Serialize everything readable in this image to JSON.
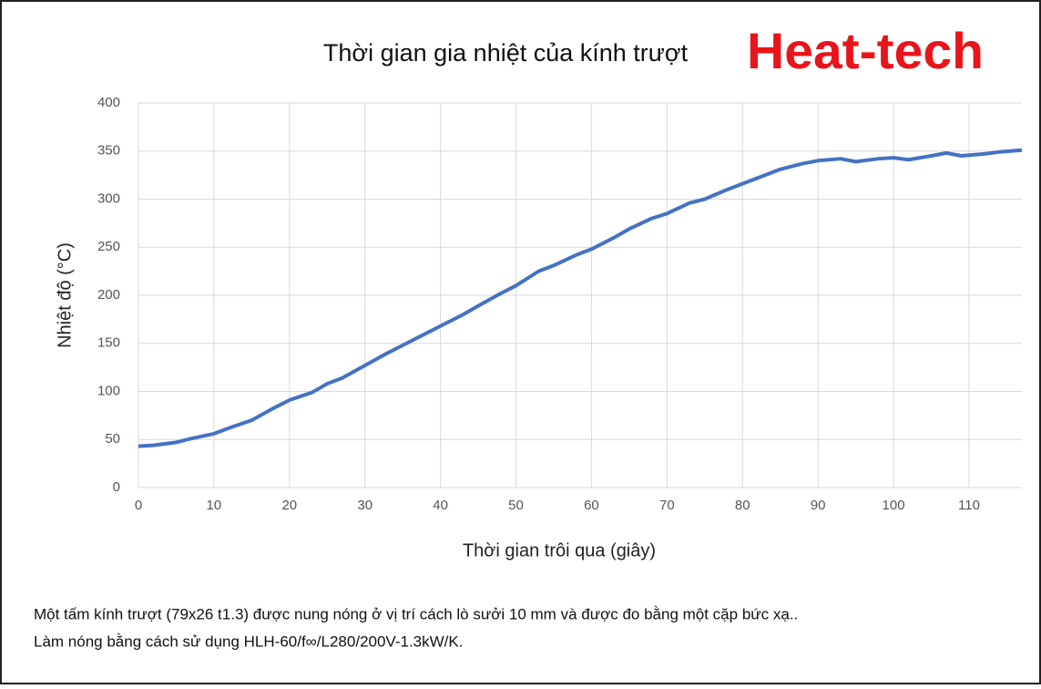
{
  "chart_data": {
    "type": "line",
    "title": "Thời gian gia nhiệt của kính trượt",
    "brand": "Heat-tech",
    "x_label": "Thời gian trôi qua (giây)",
    "y_label": "Nhiệt độ (°C)",
    "xlim": [
      0,
      117
    ],
    "xticks": [
      0,
      10,
      20,
      30,
      40,
      50,
      60,
      70,
      80,
      90,
      100,
      110
    ],
    "ylim": [
      0,
      400
    ],
    "yticks": [
      0,
      50,
      100,
      150,
      200,
      250,
      300,
      350,
      400
    ],
    "grid": true,
    "series": [
      {
        "color": "#4472c4",
        "x": [
          0,
          2,
          5,
          7,
          10,
          12,
          15,
          18,
          20,
          23,
          25,
          27,
          30,
          33,
          35,
          38,
          40,
          43,
          45,
          48,
          50,
          53,
          55,
          58,
          60,
          63,
          65,
          68,
          70,
          73,
          75,
          78,
          80,
          83,
          85,
          88,
          90,
          93,
          95,
          98,
          100,
          102,
          105,
          107,
          109,
          112,
          114,
          117
        ],
        "values": [
          43,
          44,
          47,
          51,
          56,
          62,
          70,
          83,
          91,
          99,
          108,
          114,
          127,
          140,
          148,
          160,
          168,
          180,
          189,
          202,
          210,
          225,
          231,
          242,
          248,
          260,
          269,
          280,
          285,
          296,
          300,
          310,
          316,
          325,
          331,
          337,
          340,
          342,
          339,
          342,
          343,
          341,
          345,
          348,
          345,
          347,
          349,
          351
        ]
      }
    ]
  },
  "caption": [
    "Một tấm kính trượt (79x26 t1.3) được nung nóng ở vị trí cách lò sưởi 10 mm và được đo bằng một cặp bức xạ..",
    "Làm nóng bằng cách sử dụng HLH-60/f∞/L280/200V-1.3kW/K."
  ]
}
